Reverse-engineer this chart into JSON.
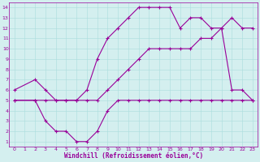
{
  "bg_color": "#d4efef",
  "grid_color": "#aadddd",
  "line_color": "#990099",
  "xlim": [
    -0.5,
    23.5
  ],
  "ylim": [
    0.5,
    14.5
  ],
  "xticks": [
    0,
    1,
    2,
    3,
    4,
    5,
    6,
    7,
    8,
    9,
    10,
    11,
    12,
    13,
    14,
    15,
    16,
    17,
    18,
    19,
    20,
    21,
    22,
    23
  ],
  "yticks": [
    1,
    2,
    3,
    4,
    5,
    6,
    7,
    8,
    9,
    10,
    11,
    12,
    13,
    14
  ],
  "xlabel": "Windchill (Refroidissement éolien,°C)",
  "curves": [
    {
      "x": [
        0,
        2,
        3,
        4,
        5,
        6,
        7,
        8,
        9,
        10,
        11,
        12,
        13,
        14,
        15,
        16,
        17,
        18,
        19,
        20,
        21,
        22,
        23
      ],
      "y": [
        6,
        7,
        6,
        5,
        5,
        5,
        6,
        9,
        11,
        12,
        13,
        14,
        14,
        14,
        14,
        12,
        13,
        13,
        12,
        12,
        13,
        12,
        12
      ]
    },
    {
      "x": [
        0,
        2,
        3,
        4,
        5,
        6,
        7,
        8,
        9,
        10,
        11,
        12,
        13,
        14,
        15,
        16,
        17,
        18,
        19,
        20,
        21,
        22,
        23
      ],
      "y": [
        5,
        5,
        5,
        5,
        5,
        5,
        5,
        5,
        6,
        7,
        8,
        9,
        10,
        10,
        10,
        10,
        10,
        11,
        11,
        12,
        6,
        6,
        5
      ]
    },
    {
      "x": [
        0,
        2,
        3,
        4,
        5,
        6,
        7,
        8,
        9,
        10,
        11,
        12,
        13,
        14,
        15,
        16,
        17,
        18,
        19,
        20,
        21,
        22,
        23
      ],
      "y": [
        5,
        5,
        3,
        2,
        2,
        1,
        1,
        2,
        4,
        5,
        5,
        5,
        5,
        5,
        5,
        5,
        5,
        5,
        5,
        5,
        5,
        5,
        5
      ]
    }
  ],
  "marker": "+",
  "markersize": 3,
  "linewidth": 0.8,
  "tick_fontsize": 4.5,
  "label_fontsize": 5.5,
  "label_fontweight": "bold"
}
